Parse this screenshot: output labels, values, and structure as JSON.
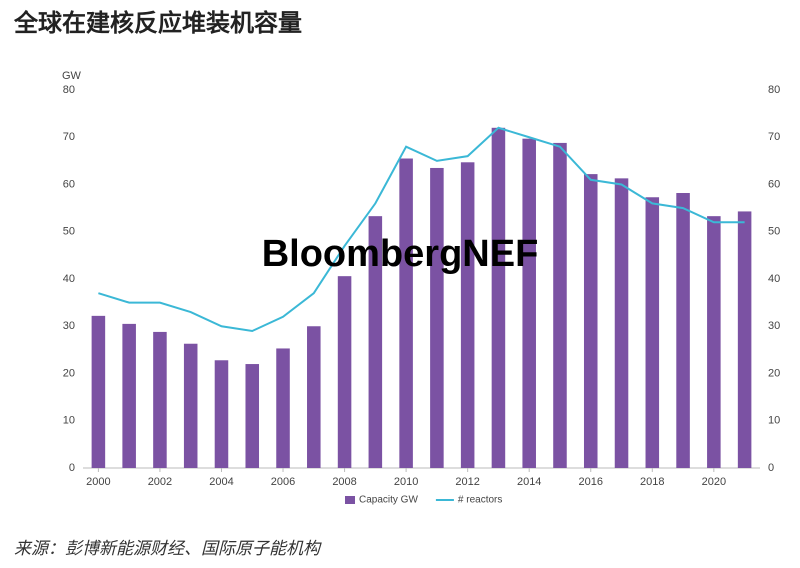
{
  "chart_data": {
    "type": "bar_line",
    "title": "全球在建核反应堆装机容量",
    "watermark": "BloombergNEF",
    "source": "来源：彭博新能源财经、国际原子能机构",
    "y_label": "GW",
    "x": [
      2000,
      2001,
      2002,
      2003,
      2004,
      2005,
      2006,
      2007,
      2008,
      2009,
      2010,
      2011,
      2012,
      2013,
      2014,
      2015,
      2016,
      2017,
      2018,
      2019,
      2020,
      2021
    ],
    "xlim": [
      1999.5,
      2021.5
    ],
    "xticks": [
      2000,
      2002,
      2004,
      2006,
      2008,
      2010,
      2012,
      2014,
      2016,
      2018,
      2020
    ],
    "ylim": [
      0,
      80
    ],
    "yticks": [
      0,
      10,
      20,
      30,
      40,
      50,
      60,
      70,
      80
    ],
    "y2lim": [
      0,
      80
    ],
    "y2ticks": [
      0,
      10,
      20,
      30,
      40,
      50,
      60,
      70,
      80
    ],
    "series": [
      {
        "name": "Capacity GW",
        "type": "bar",
        "color": "#7b52a3",
        "values": [
          32.2,
          30.5,
          28.8,
          26.3,
          22.8,
          22,
          25.3,
          30,
          40.6,
          53.3,
          65.5,
          63.5,
          64.7,
          72,
          69.7,
          68.8,
          62.2,
          61.3,
          57.3,
          58.2,
          53.3,
          54.3
        ]
      },
      {
        "name": "# reactors",
        "type": "line",
        "axis": "y2",
        "color": "#3bb8d6",
        "values": [
          37,
          35,
          35,
          33,
          30,
          29,
          32,
          37,
          47,
          56,
          68,
          65,
          66,
          72,
          70,
          68,
          61,
          60,
          56,
          55,
          52,
          52
        ]
      }
    ]
  }
}
